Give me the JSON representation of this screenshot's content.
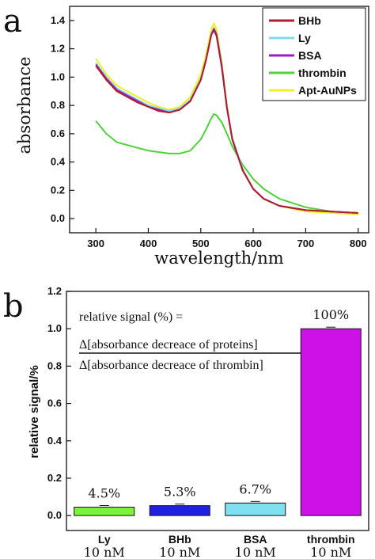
{
  "chart_data": [
    {
      "type": "line",
      "panel_label": "a",
      "title": "",
      "xlabel": "wavelength/nm",
      "ylabel": "absorbance",
      "xlim": [
        250,
        820
      ],
      "ylim": [
        -0.1,
        1.5
      ],
      "xticks": [
        "300",
        "400",
        "500",
        "600",
        "700",
        "800"
      ],
      "yticks": [
        "0.0",
        "0.2",
        "0.4",
        "0.6",
        "0.8",
        "1.0",
        "1.2",
        "1.4"
      ],
      "legend_position": "top-right",
      "grid": false,
      "x": [
        300,
        320,
        340,
        360,
        380,
        400,
        420,
        440,
        460,
        480,
        500,
        510,
        520,
        525,
        530,
        540,
        550,
        560,
        580,
        600,
        620,
        650,
        700,
        750,
        800
      ],
      "series": [
        {
          "name": "BHb",
          "color": "#b01e2a",
          "values": [
            1.08,
            0.98,
            0.9,
            0.86,
            0.82,
            0.79,
            0.76,
            0.75,
            0.77,
            0.83,
            0.98,
            1.12,
            1.3,
            1.34,
            1.3,
            1.08,
            0.78,
            0.56,
            0.34,
            0.21,
            0.14,
            0.09,
            0.06,
            0.05,
            0.04
          ]
        },
        {
          "name": "Ly",
          "color": "#7fdcef",
          "values": [
            1.1,
            1.0,
            0.92,
            0.88,
            0.84,
            0.8,
            0.78,
            0.76,
            0.78,
            0.84,
            0.99,
            1.13,
            1.31,
            1.35,
            1.31,
            1.09,
            0.79,
            0.57,
            0.35,
            0.21,
            0.14,
            0.09,
            0.06,
            0.05,
            0.04
          ]
        },
        {
          "name": "BSA",
          "color": "#9a1fc2",
          "values": [
            1.09,
            0.99,
            0.91,
            0.87,
            0.83,
            0.79,
            0.77,
            0.75,
            0.77,
            0.83,
            0.98,
            1.12,
            1.3,
            1.33,
            1.29,
            1.07,
            0.78,
            0.56,
            0.34,
            0.21,
            0.14,
            0.09,
            0.06,
            0.05,
            0.04
          ]
        },
        {
          "name": "thrombin",
          "color": "#4ed13a",
          "values": [
            0.69,
            0.6,
            0.54,
            0.52,
            0.5,
            0.48,
            0.47,
            0.46,
            0.46,
            0.48,
            0.56,
            0.63,
            0.71,
            0.74,
            0.73,
            0.68,
            0.6,
            0.51,
            0.38,
            0.28,
            0.21,
            0.14,
            0.08,
            0.05,
            0.03
          ]
        },
        {
          "name": "Apt-AuNPs",
          "color": "#f2ee28",
          "values": [
            1.13,
            1.02,
            0.94,
            0.9,
            0.86,
            0.82,
            0.79,
            0.77,
            0.79,
            0.86,
            1.02,
            1.16,
            1.34,
            1.38,
            1.34,
            1.1,
            0.8,
            0.57,
            0.35,
            0.21,
            0.14,
            0.09,
            0.05,
            0.04,
            0.03
          ]
        }
      ]
    },
    {
      "type": "bar",
      "panel_label": "b",
      "title": "",
      "xlabel": "",
      "ylabel": "relative signal/%",
      "ylim": [
        -0.08,
        1.2
      ],
      "yticks": [
        "0.0",
        "0.2",
        "0.4",
        "0.6",
        "0.8",
        "1.0",
        "1.2"
      ],
      "grid": false,
      "categories": [
        "Ly",
        "BHb",
        "BSA",
        "thrombin"
      ],
      "category_sublabels": [
        "10 nM",
        "10 nM",
        "10 nM",
        "10 nM"
      ],
      "values": [
        0.045,
        0.053,
        0.067,
        1.0
      ],
      "data_labels": [
        "4.5%",
        "5.3%",
        "6.7%",
        "100%"
      ],
      "bar_colors": [
        "#7ef23a",
        "#2020e0",
        "#7fe0f2",
        "#cc12e6"
      ],
      "annotation": {
        "line1": "relative signal (%) =",
        "numerator": "Δ[absorbance decreace of proteins]",
        "denominator": "Δ[absorbance decreace of thrombin]"
      }
    }
  ]
}
